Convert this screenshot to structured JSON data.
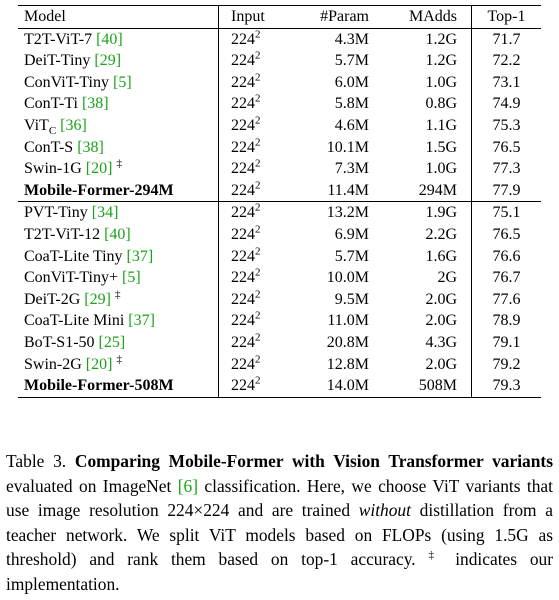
{
  "table": {
    "header": [
      "Model",
      "Input",
      "#Param",
      "MAdds",
      "Top-1"
    ],
    "groups": [
      [
        {
          "model": "T2T-ViT-7",
          "ref": "[40]",
          "input": "224",
          "input_sup": "2",
          "params": "4.3M",
          "madds": "1.2G",
          "top1": 71.7
        },
        {
          "model": "DeiT-Tiny",
          "ref": "[29]",
          "input": "224",
          "input_sup": "2",
          "params": "5.7M",
          "madds": "1.2G",
          "top1": 72.2
        },
        {
          "model": "ConViT-Tiny",
          "ref": "[5]",
          "input": "224",
          "input_sup": "2",
          "params": "6.0M",
          "madds": "1.0G",
          "top1": 73.1
        },
        {
          "model": "ConT-Ti",
          "ref": "[38]",
          "input": "224",
          "input_sup": "2",
          "params": "5.8M",
          "madds": "0.8G",
          "top1": 74.9
        },
        {
          "model": "ViT",
          "model_sub": "C",
          "ref": "[36]",
          "input": "224",
          "input_sup": "2",
          "params": "4.6M",
          "madds": "1.1G",
          "top1": 75.3
        },
        {
          "model": "ConT-S",
          "ref": "[38]",
          "input": "224",
          "input_sup": "2",
          "params": "10.1M",
          "madds": "1.5G",
          "top1": 76.5
        },
        {
          "model": "Swin-1G",
          "ref": "[20]",
          "mark": "‡",
          "input": "224",
          "input_sup": "2",
          "params": "7.3M",
          "madds": "1.0G",
          "top1": 77.3
        },
        {
          "model": "Mobile-Former-294M",
          "bold": true,
          "input": "224",
          "input_sup": "2",
          "params": "11.4M",
          "madds": "294M",
          "top1": 77.9
        }
      ],
      [
        {
          "model": "PVT-Tiny",
          "ref": "[34]",
          "input": "224",
          "input_sup": "2",
          "params": "13.2M",
          "madds": "1.9G",
          "top1": 75.1
        },
        {
          "model": "T2T-ViT-12",
          "ref": "[40]",
          "input": "224",
          "input_sup": "2",
          "params": "6.9M",
          "madds": "2.2G",
          "top1": 76.5
        },
        {
          "model": "CoaT-Lite Tiny",
          "ref": "[37]",
          "input": "224",
          "input_sup": "2",
          "params": "5.7M",
          "madds": "1.6G",
          "top1": 76.6
        },
        {
          "model": "ConViT-Tiny+",
          "ref": "[5]",
          "input": "224",
          "input_sup": "2",
          "params": "10.0M",
          "madds": "2G",
          "top1": 76.7
        },
        {
          "model": "DeiT-2G",
          "ref": "[29]",
          "mark": "‡",
          "input": "224",
          "input_sup": "2",
          "params": "9.5M",
          "madds": "2.0G",
          "top1": 77.6
        },
        {
          "model": "CoaT-Lite Mini",
          "ref": "[37]",
          "input": "224",
          "input_sup": "2",
          "params": "11.0M",
          "madds": "2.0G",
          "top1": 78.9
        },
        {
          "model": "BoT-S1-50",
          "ref": "[25]",
          "input": "224",
          "input_sup": "2",
          "params": "20.8M",
          "madds": "4.3G",
          "top1": 79.1
        },
        {
          "model": "Swin-2G",
          "ref": "[20]",
          "mark": "‡",
          "input": "224",
          "input_sup": "2",
          "params": "12.8M",
          "madds": "2.0G",
          "top1": 79.2
        },
        {
          "model": "Mobile-Former-508M",
          "bold": true,
          "input": "224",
          "input_sup": "2",
          "params": "14.0M",
          "madds": "508M",
          "top1": 79.3
        }
      ]
    ]
  },
  "caption": [
    {
      "text": "Table 3. ",
      "style": "plain"
    },
    {
      "text": "Comparing Mobile-Former with Vision Transformer variants",
      "style": "bold"
    },
    {
      "text": " evaluated on ImageNet ",
      "style": "plain"
    },
    {
      "text": "[6]",
      "style": "ref"
    },
    {
      "text": " classification. Here, we choose ViT variants that use image resolution 224×224 and are trained ",
      "style": "plain"
    },
    {
      "text": "without",
      "style": "italic"
    },
    {
      "text": " distillation from a teacher network. We split ViT models based on FLOPs (using 1.5G as threshold) and rank them based on top-1 accuracy. ",
      "style": "plain"
    },
    {
      "text": "‡",
      "style": "sup"
    },
    {
      "text": " indicates our implementation.",
      "style": "plain"
    }
  ]
}
